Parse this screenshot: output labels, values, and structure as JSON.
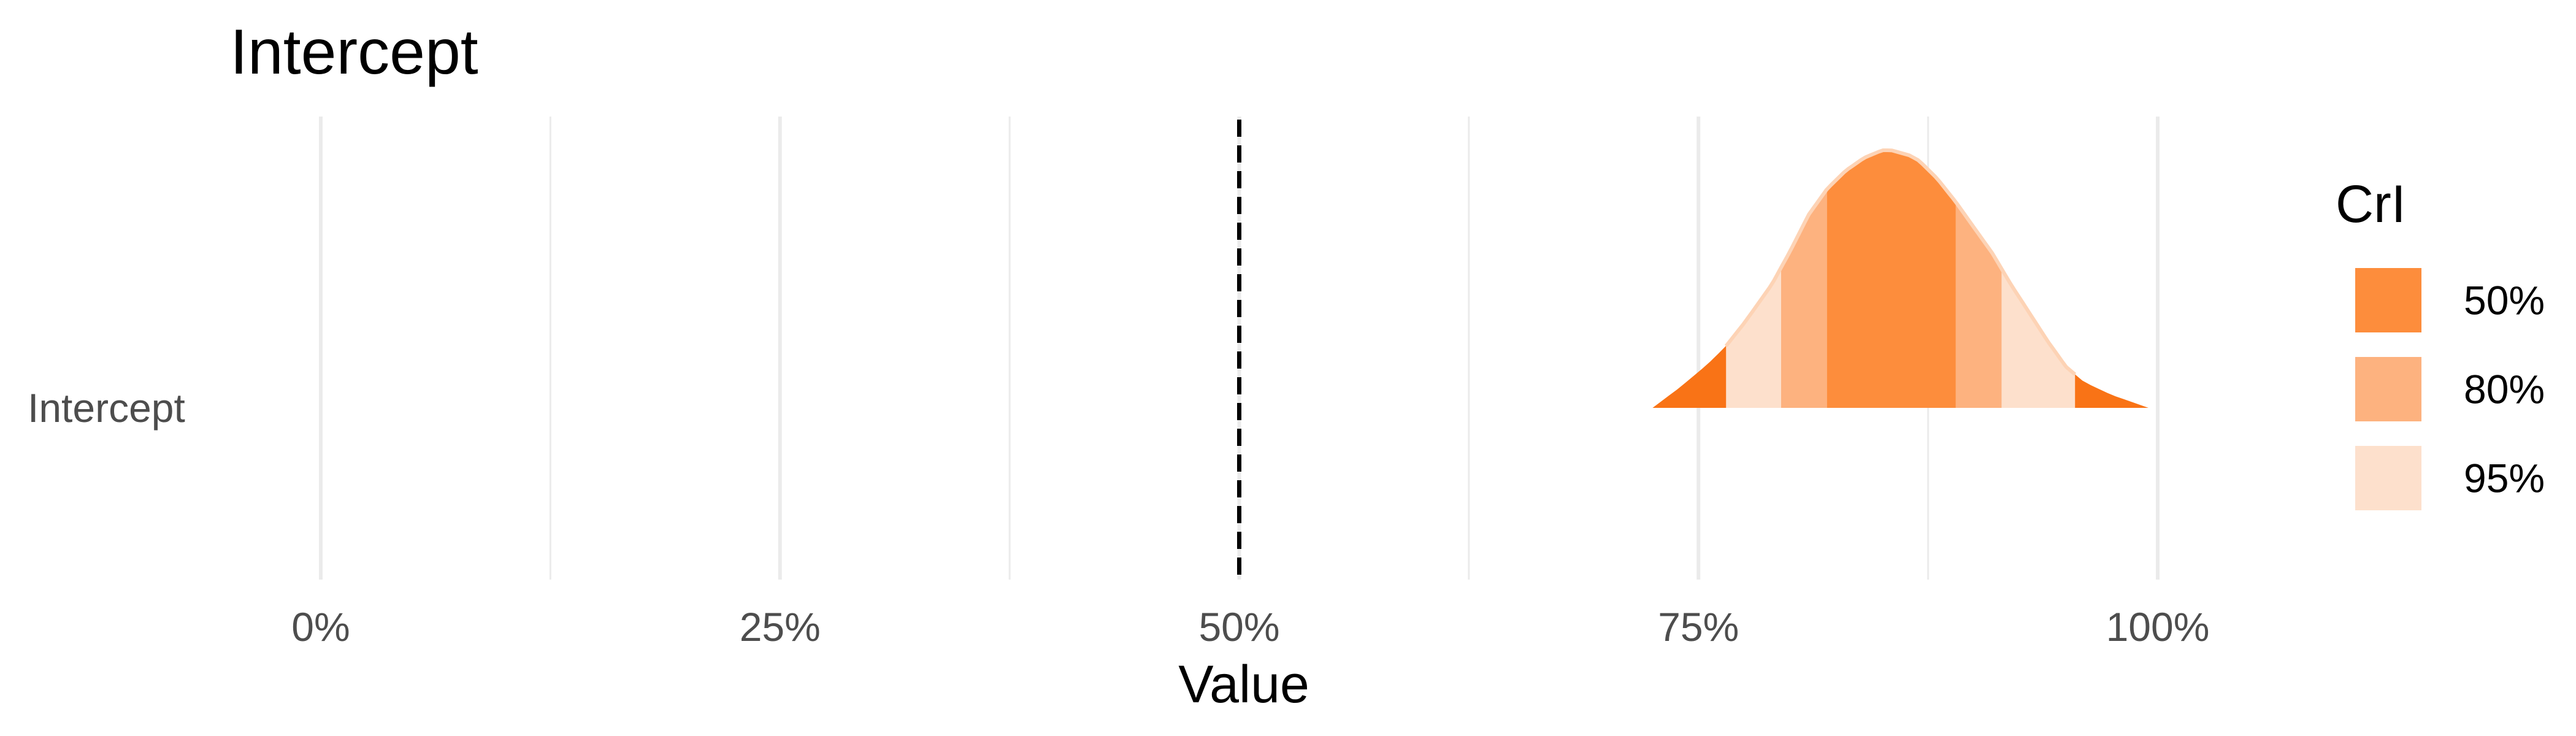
{
  "chart_data": {
    "type": "area",
    "title": "Intercept",
    "xlabel": "Value",
    "ylabel": "",
    "y_category": "Intercept",
    "xlim": [
      -0.02,
      1.12
    ],
    "x_ticks": [
      0,
      0.25,
      0.5,
      0.75,
      1.0
    ],
    "x_tick_labels": [
      "0%",
      "25%",
      "50%",
      "75%",
      "100%"
    ],
    "x_minor_ticks": [
      0.125,
      0.375,
      0.625,
      0.875
    ],
    "reference_line": 0.5,
    "grid": true,
    "legend_position": "right",
    "density_range": [
      0.725,
      0.995
    ],
    "density_mode": 0.855,
    "density": {
      "x": [
        0.725,
        0.74,
        0.755,
        0.765,
        0.775,
        0.79,
        0.8,
        0.81,
        0.82,
        0.83,
        0.84,
        0.85,
        0.855,
        0.86,
        0.865,
        0.87,
        0.88,
        0.89,
        0.9,
        0.91,
        0.92,
        0.93,
        0.94,
        0.95,
        0.96,
        0.975,
        0.995
      ],
      "y": [
        0.0,
        0.08,
        0.17,
        0.24,
        0.33,
        0.48,
        0.61,
        0.75,
        0.85,
        0.92,
        0.97,
        1.0,
        1.0,
        0.99,
        0.98,
        0.96,
        0.89,
        0.8,
        0.7,
        0.6,
        0.48,
        0.37,
        0.26,
        0.16,
        0.1,
        0.05,
        0.0
      ]
    },
    "intervals": [
      {
        "level": "95%",
        "low": 0.765,
        "high": 0.955
      },
      {
        "level": "80%",
        "low": 0.795,
        "high": 0.915
      },
      {
        "level": "50%",
        "low": 0.82,
        "high": 0.89
      }
    ],
    "legend": {
      "title": "CrI",
      "entries": [
        {
          "label": "50%",
          "color": "#fd8d3c"
        },
        {
          "label": "80%",
          "color": "#fdb27f"
        },
        {
          "label": "95%",
          "color": "#fde0cc"
        }
      ]
    },
    "colors": {
      "tail": "#f97316",
      "ci95": "#fde0cc",
      "ci80": "#fdb27f",
      "ci50": "#fd8d3c",
      "outline": "#fdd3b5",
      "grid": "#ebebeb",
      "ref_line": "#000000"
    }
  }
}
